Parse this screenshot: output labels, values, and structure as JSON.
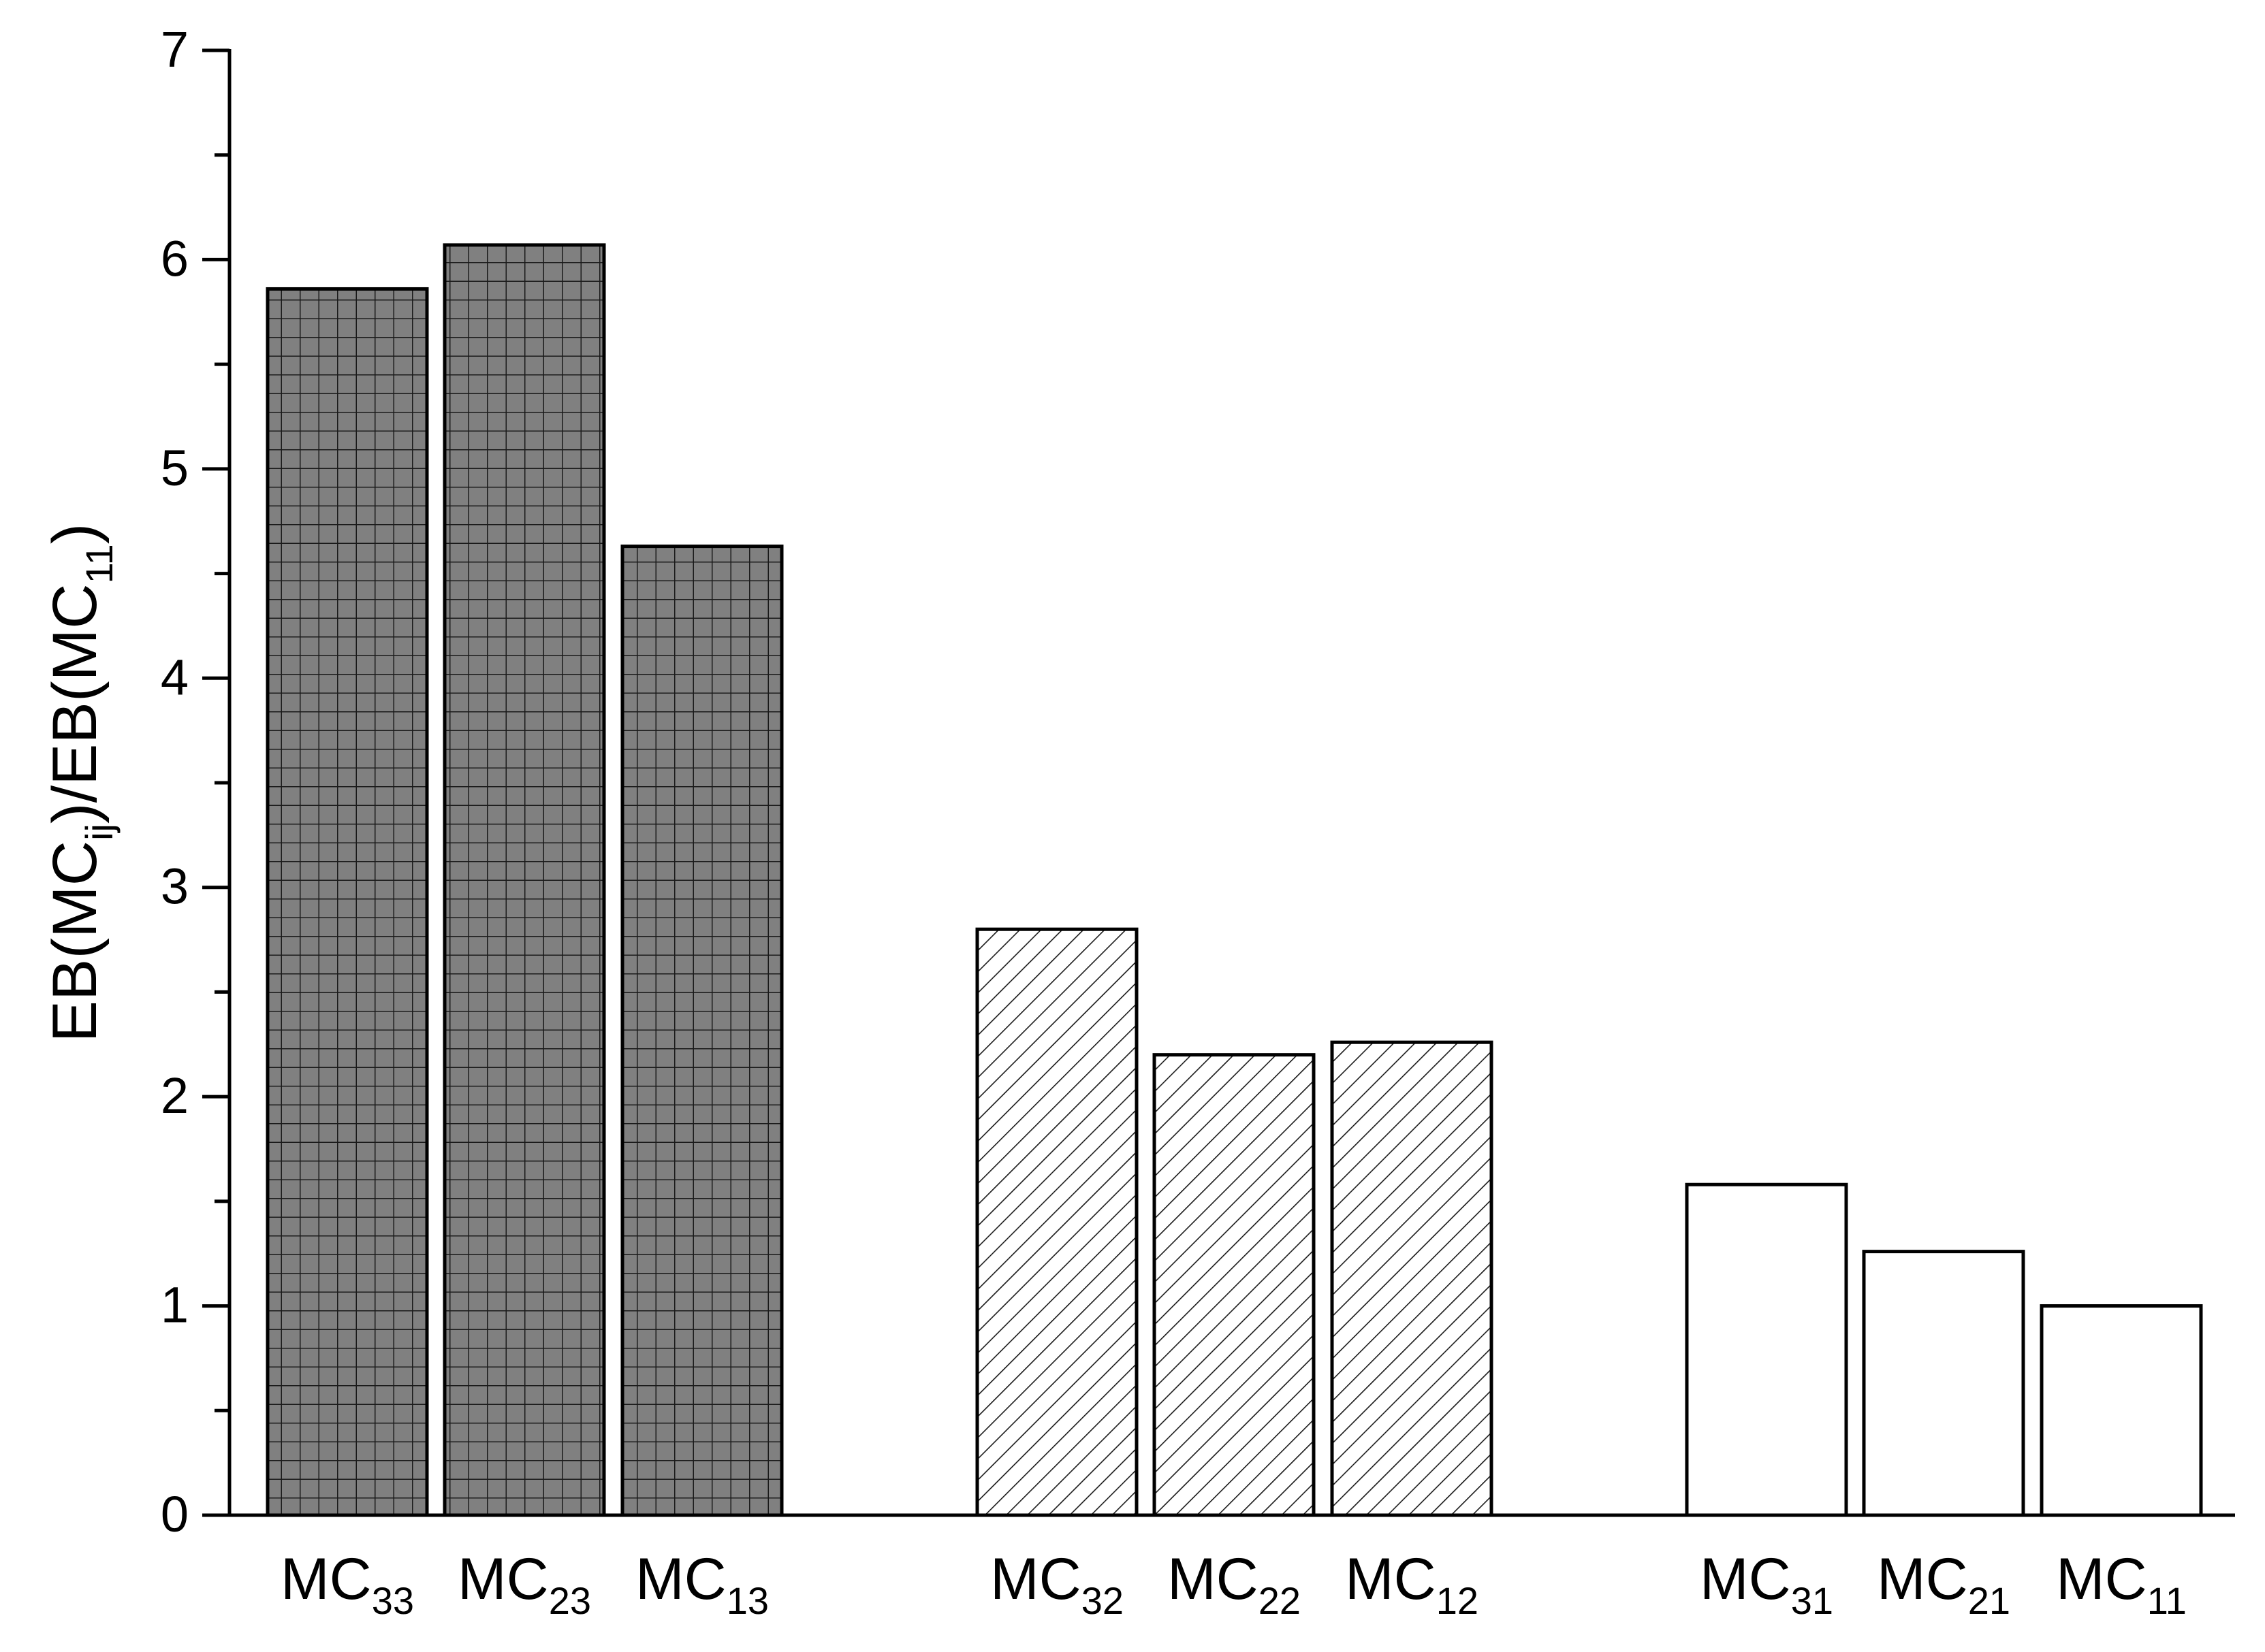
{
  "chart_data": {
    "type": "bar",
    "title": "",
    "xlabel": "",
    "ylabel": {
      "segments": [
        {
          "text": "EB(MC",
          "sub": false
        },
        {
          "text": "ij",
          "sub": true
        },
        {
          "text": ")/EB(MC",
          "sub": false
        },
        {
          "text": "11",
          "sub": true
        },
        {
          "text": ")",
          "sub": false
        }
      ]
    },
    "ylim": [
      0,
      7
    ],
    "yticks": [
      "0",
      "1",
      "2",
      "3",
      "4",
      "5",
      "6",
      "7"
    ],
    "grid": false,
    "legend": "none",
    "categories": [
      {
        "base": "MC",
        "sub": "33"
      },
      {
        "base": "MC",
        "sub": "23"
      },
      {
        "base": "MC",
        "sub": "13"
      },
      {
        "base": "MC",
        "sub": "32"
      },
      {
        "base": "MC",
        "sub": "22"
      },
      {
        "base": "MC",
        "sub": "12"
      },
      {
        "base": "MC",
        "sub": "31"
      },
      {
        "base": "MC",
        "sub": "21"
      },
      {
        "base": "MC",
        "sub": "11"
      }
    ],
    "values": [
      5.86,
      6.07,
      4.63,
      2.8,
      2.2,
      2.26,
      1.58,
      1.26,
      1.0
    ],
    "groups": [
      {
        "pattern": "grid",
        "fill": "#808080",
        "line_color": "#1a1a1a",
        "members": [
          0,
          1,
          2
        ]
      },
      {
        "pattern": "diagonal",
        "fill": "#ffffff",
        "line_color": "#1a1a1a",
        "members": [
          3,
          4,
          5
        ]
      },
      {
        "pattern": "none",
        "fill": "#ffffff",
        "line_color": "#1a1a1a",
        "members": [
          6,
          7,
          8
        ]
      }
    ]
  }
}
